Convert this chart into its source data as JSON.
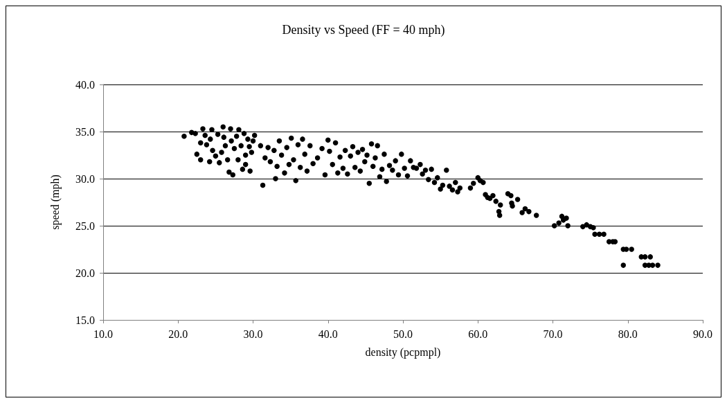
{
  "chart_data": {
    "type": "scatter",
    "title": "Density vs Speed (FF = 40 mph)",
    "xlabel": "density (pcpmpl)",
    "ylabel": "speed (mph)",
    "xlim": [
      10,
      90
    ],
    "ylim": [
      15,
      40
    ],
    "xticks": [
      {
        "value": 10,
        "label": "10.0"
      },
      {
        "value": 20,
        "label": "20.0"
      },
      {
        "value": 30,
        "label": "30.0"
      },
      {
        "value": 40,
        "label": "40.0"
      },
      {
        "value": 50,
        "label": "50.0"
      },
      {
        "value": 60,
        "label": "60.0"
      },
      {
        "value": 70,
        "label": "70.0"
      },
      {
        "value": 80,
        "label": "80.0"
      },
      {
        "value": 90,
        "label": "90.0"
      }
    ],
    "yticks": [
      {
        "value": 15,
        "label": "15.0"
      },
      {
        "value": 20,
        "label": "20.0"
      },
      {
        "value": 25,
        "label": "25.0"
      },
      {
        "value": 30,
        "label": "30.0"
      },
      {
        "value": 35,
        "label": "35.0"
      },
      {
        "value": 40,
        "label": "40.0"
      }
    ],
    "grid": "y",
    "marker": "circle",
    "series": [
      {
        "color": "#000000",
        "x": [
          20.8,
          21.8,
          22.3,
          22.5,
          23,
          23,
          23.3,
          23.6,
          23.8,
          24.2,
          24.3,
          24.5,
          24.6,
          25,
          25.3,
          25.5,
          25.8,
          26,
          26.1,
          26.3,
          26.6,
          26.8,
          27,
          27.1,
          27.3,
          27.5,
          27.8,
          28,
          28.1,
          28.4,
          28.6,
          28.8,
          29,
          29.3,
          29.5,
          29.6,
          29.8,
          30,
          30.2,
          29,
          31,
          31.3,
          31.6,
          32,
          32.3,
          32.8,
          33,
          33.2,
          33.5,
          33.8,
          34.2,
          34.5,
          34.8,
          35.1,
          35.4,
          35.7,
          36,
          36.3,
          36.6,
          36.9,
          37.2,
          37.6,
          38,
          38.6,
          39.2,
          39.6,
          40,
          40.2,
          40.6,
          41,
          41.3,
          41.6,
          42,
          42.3,
          42.6,
          43,
          43.3,
          43.6,
          44,
          44.3,
          44.6,
          44.9,
          45.2,
          45.5,
          45.8,
          46,
          46.3,
          46.6,
          46.9,
          47.2,
          47.5,
          47.8,
          48.2,
          48.6,
          49,
          49.4,
          49.8,
          50.2,
          50.6,
          51,
          51.4,
          51.8,
          52.3,
          52.6,
          53,
          53.4,
          53.8,
          54.2,
          54.6,
          55,
          55.3,
          55.8,
          56.2,
          56.6,
          57,
          57.3,
          57.6,
          59,
          59.4,
          60,
          60.3,
          60.7,
          61,
          61.3,
          61.6,
          62,
          62.4,
          62.8,
          62.9,
          63,
          64,
          64.4,
          64.5,
          64.6,
          65.3,
          65.9,
          66.3,
          66.8,
          67.8,
          70.2,
          70.8,
          71.2,
          71.4,
          71.8,
          72,
          74,
          74.5,
          75,
          75.4,
          75.6,
          76.2,
          76.8,
          77.5,
          78,
          78.3,
          79.4,
          79.8,
          80.5,
          79.4,
          81.8,
          82.3,
          83,
          82.3,
          82.8,
          83.3,
          84
        ],
        "values": [
          34.5,
          34.9,
          34.8,
          32.6,
          33.8,
          32,
          35.3,
          34.6,
          33.6,
          31.8,
          34.2,
          35.2,
          33,
          32.4,
          34.7,
          31.7,
          32.8,
          35.5,
          34.4,
          33.5,
          32,
          30.7,
          35.3,
          34,
          30.4,
          33.2,
          34.5,
          32,
          35.2,
          33.5,
          31,
          34.8,
          32.5,
          34.2,
          33.4,
          30.8,
          32.8,
          34,
          34.6,
          31.5,
          33.5,
          29.3,
          32.2,
          33.3,
          31.8,
          33,
          30,
          31.3,
          34,
          32.5,
          30.6,
          33.3,
          31.5,
          34.3,
          32,
          29.8,
          33.6,
          31.2,
          34.2,
          32.6,
          30.8,
          33.5,
          31.6,
          32.2,
          33.2,
          30.4,
          34.1,
          32.9,
          31.5,
          33.8,
          30.6,
          32.3,
          31.1,
          33,
          30.5,
          32.4,
          33.4,
          31.2,
          32.8,
          30.8,
          33.1,
          31.8,
          32.5,
          29.5,
          33.7,
          31.3,
          32.2,
          33.5,
          30.2,
          31,
          32.6,
          29.7,
          31.4,
          30.9,
          31.9,
          30.4,
          32.6,
          31.1,
          30.3,
          31.9,
          31.2,
          31.1,
          31.5,
          30.5,
          30.9,
          29.9,
          31,
          29.6,
          30.1,
          28.9,
          29.3,
          30.9,
          29.2,
          28.8,
          29.6,
          28.6,
          29,
          29,
          29.5,
          30.1,
          29.8,
          29.6,
          28.3,
          28,
          27.9,
          28.2,
          27.6,
          26.5,
          26.1,
          27.2,
          28.4,
          28.2,
          27.4,
          27.1,
          27.8,
          26.4,
          26.8,
          26.5,
          26.1,
          25,
          25.3,
          26,
          25.6,
          25.8,
          25,
          24.9,
          25.1,
          24.9,
          24.8,
          24.1,
          24.1,
          24.1,
          23.3,
          23.3,
          23.3,
          22.5,
          22.5,
          22.5,
          20.8,
          21.7,
          21.7,
          21.7,
          20.8,
          20.8,
          20.8,
          20.8
        ]
      }
    ]
  }
}
